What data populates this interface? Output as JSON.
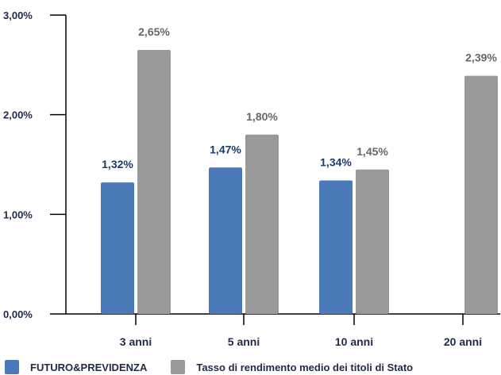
{
  "chart_data": {
    "type": "bar",
    "categories": [
      "3 anni",
      "5 anni",
      "10 anni",
      "20 anni"
    ],
    "series": [
      {
        "name": "FUTURO&PREVIDENZA",
        "values": [
          1.32,
          1.47,
          1.34,
          null
        ],
        "labels": [
          "1,32%",
          "1,47%",
          "1,34%",
          ""
        ],
        "color": "#4a7ab8"
      },
      {
        "name": "Tasso di rendimento medio dei titoli di Stato",
        "values": [
          2.65,
          1.8,
          1.45,
          2.39
        ],
        "labels": [
          "2,65%",
          "1,80%",
          "1,45%",
          "2,39%"
        ],
        "color": "#999999"
      }
    ],
    "yticks": [
      0,
      1,
      2,
      3
    ],
    "ytick_labels": [
      "0,00%",
      "1,00%",
      "2,00%",
      "3,00%"
    ],
    "ylim": [
      0,
      3
    ],
    "grid": false,
    "legend_position": "bottom-left",
    "label_colors": {
      "series1": "#1a3a6b",
      "series2": "#666666"
    }
  }
}
